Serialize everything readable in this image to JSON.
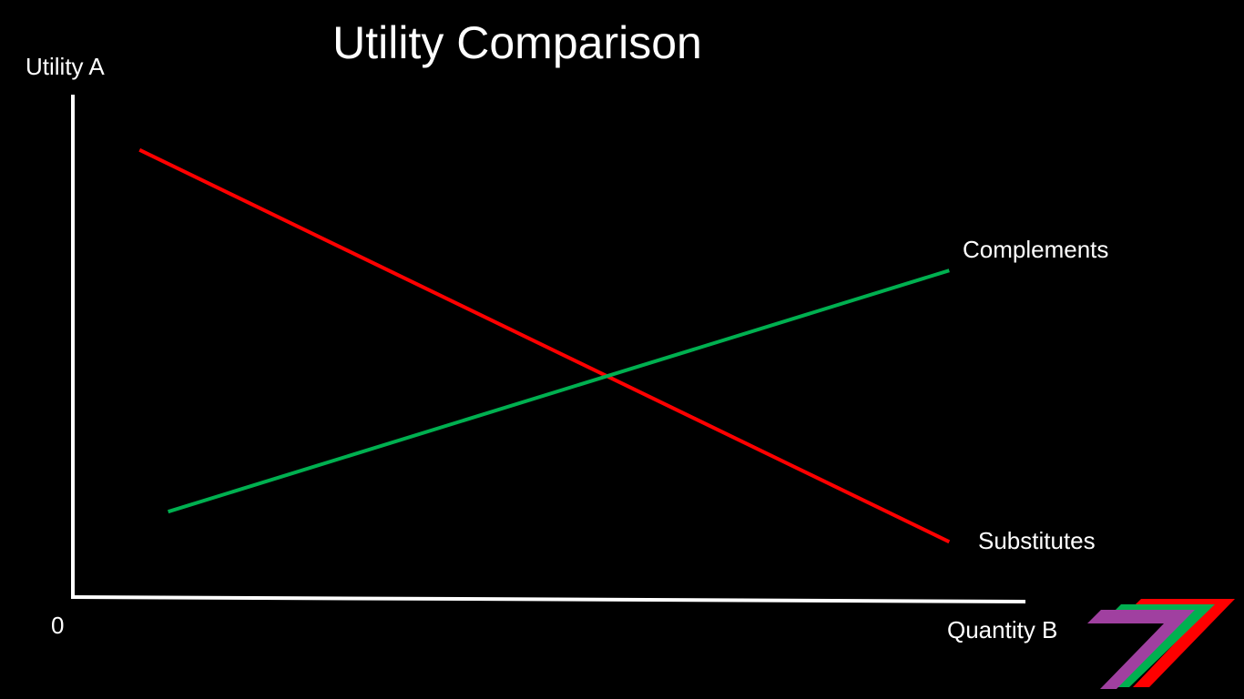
{
  "chart_data": {
    "type": "line",
    "title": "Utility Comparison",
    "ylabel": "Utility A",
    "xlabel": "Quantity B",
    "origin_label": "0",
    "xlim": [
      0,
      100
    ],
    "ylim": [
      0,
      100
    ],
    "grid": false,
    "legend": "none",
    "series": [
      {
        "name": "Substitutes",
        "color": "#ff0000",
        "points": [
          [
            7,
            89
          ],
          [
            92,
            11
          ]
        ]
      },
      {
        "name": "Complements",
        "color": "#00b050",
        "points": [
          [
            10,
            17
          ],
          [
            92,
            65
          ]
        ]
      }
    ],
    "axis_color": "#ffffff"
  },
  "logo": {
    "icon": "stacked-7-logo-icon",
    "colors": [
      "#a040a0",
      "#00b050",
      "#ff0000"
    ]
  }
}
